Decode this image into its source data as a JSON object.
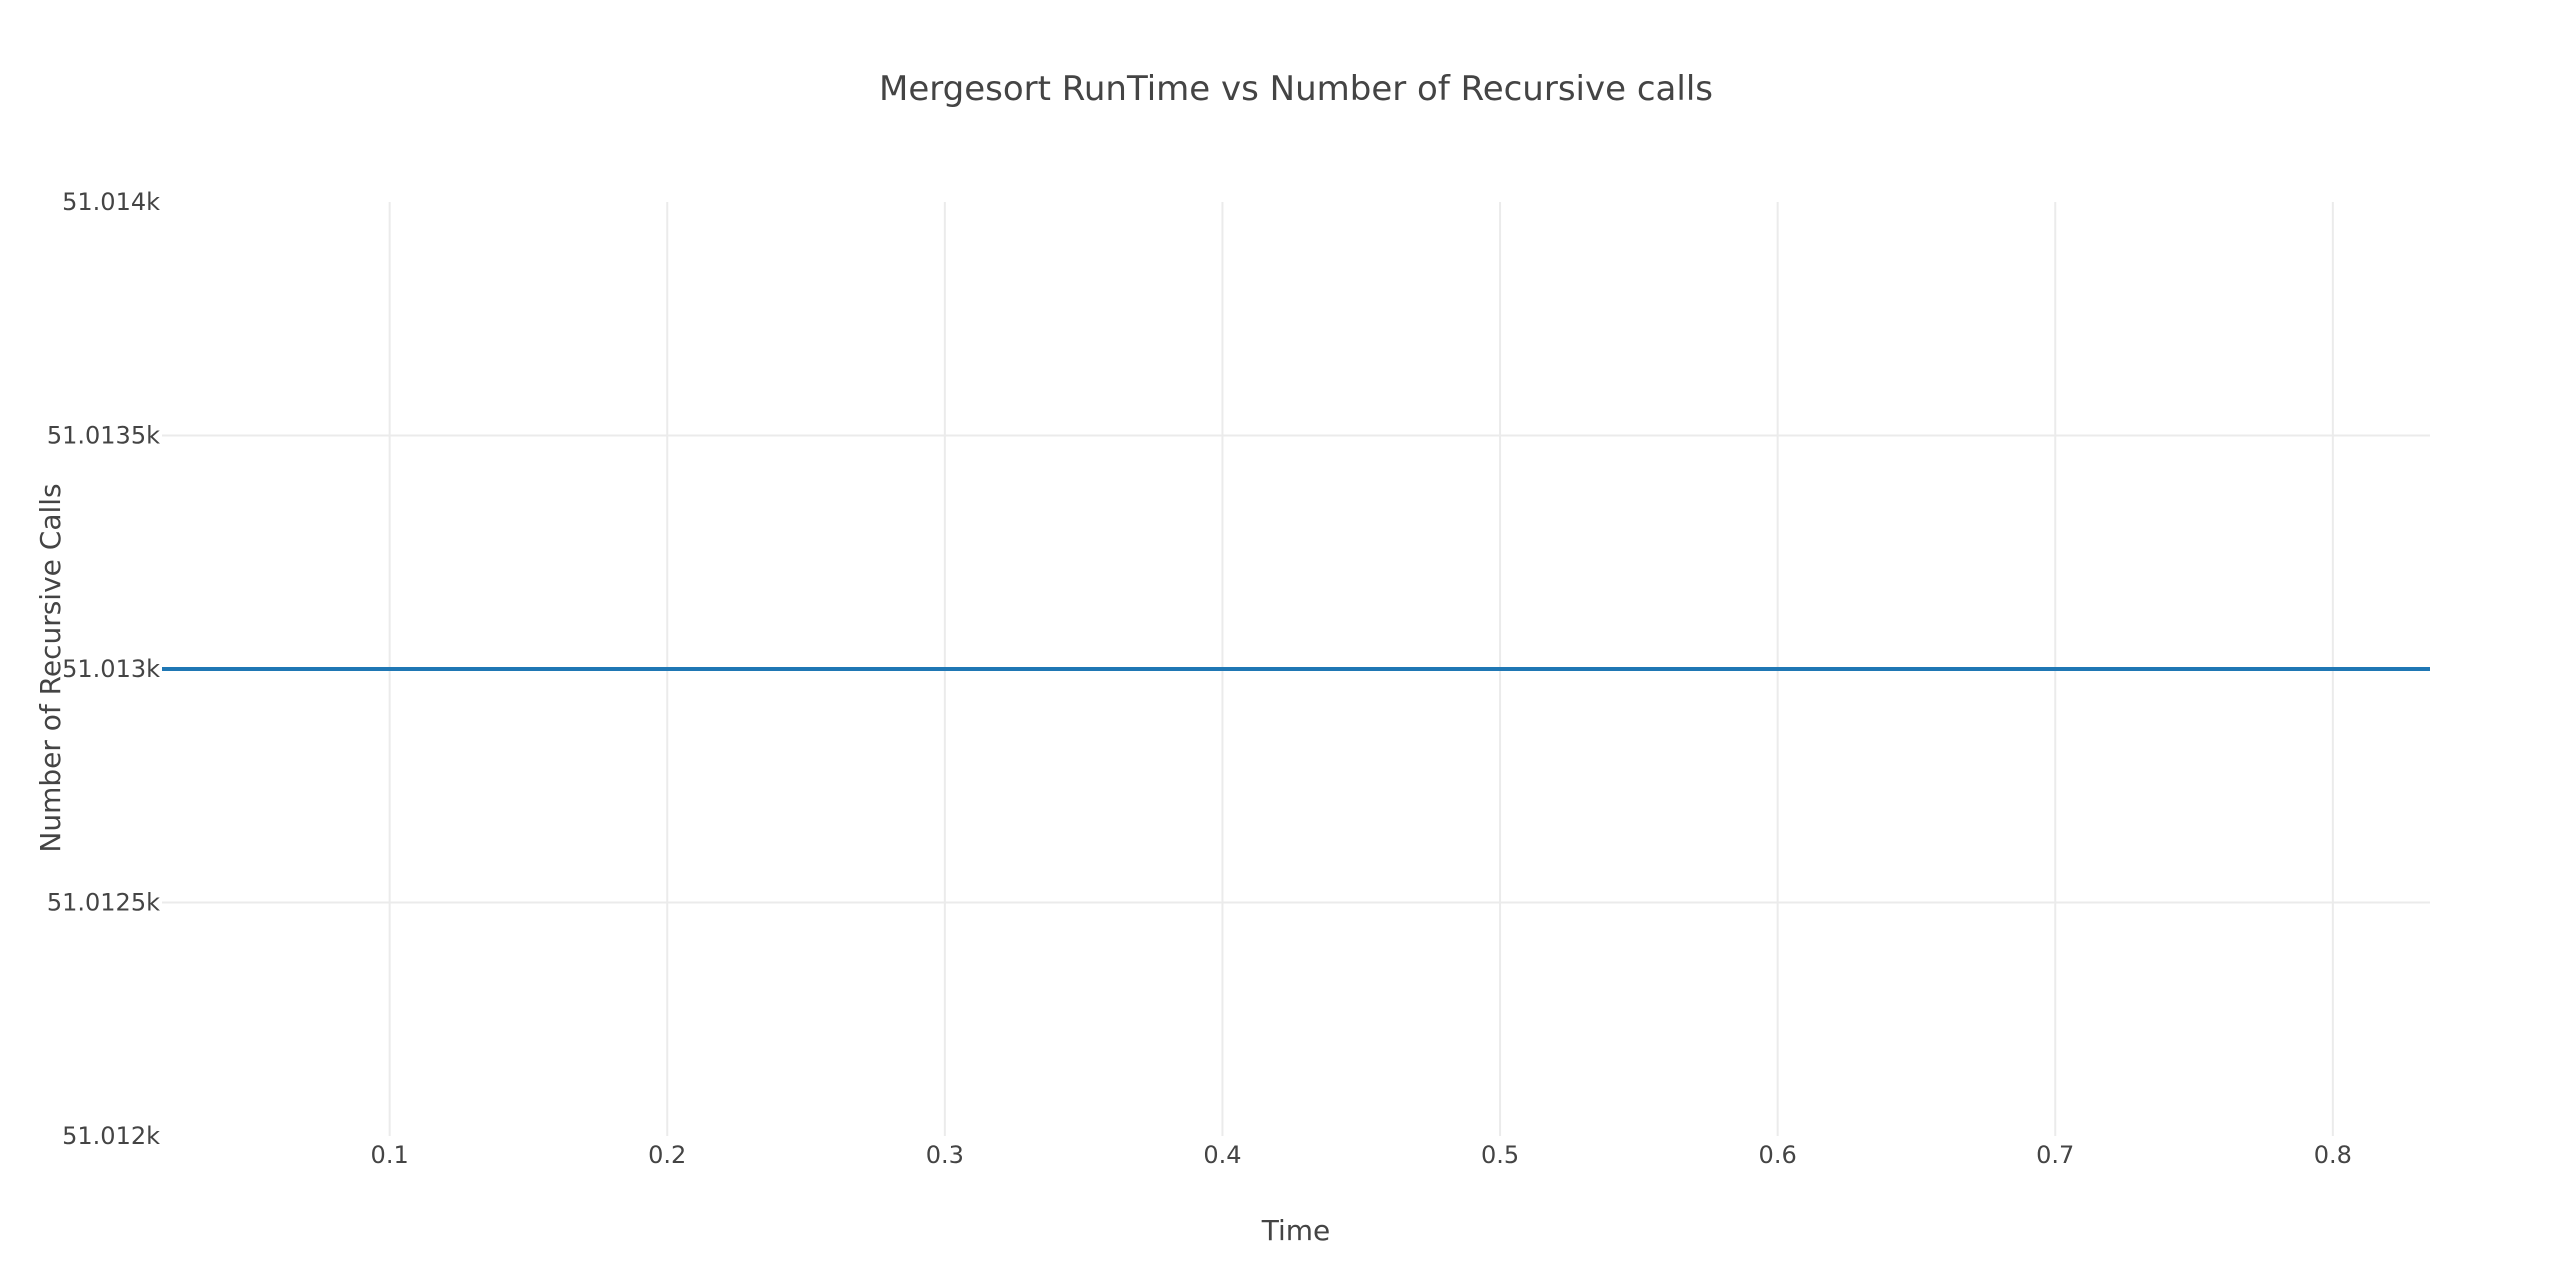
{
  "chart_data": {
    "type": "line",
    "title": "Mergesort RunTime vs Number of Recursive calls",
    "xlabel": "Time",
    "ylabel": "Number of Recursive Calls",
    "xlim": [
      0.018,
      0.835
    ],
    "ylim": [
      51012,
      51014
    ],
    "x_ticks": [
      0.1,
      0.2,
      0.3,
      0.4,
      0.5,
      0.6,
      0.7,
      0.8
    ],
    "x_tick_labels": [
      "0.1",
      "0.2",
      "0.3",
      "0.4",
      "0.5",
      "0.6",
      "0.7",
      "0.8"
    ],
    "y_ticks": [
      51012,
      51012.5,
      51013,
      51013.5,
      51014
    ],
    "y_tick_labels": [
      "51.012k",
      "51.0125k",
      "51.013k",
      "51.0135k",
      "51.014k"
    ],
    "grid": true,
    "series": [
      {
        "color": "#1f77b4",
        "x": [
          0.018,
          0.835
        ],
        "y": [
          51013,
          51013
        ]
      }
    ]
  }
}
